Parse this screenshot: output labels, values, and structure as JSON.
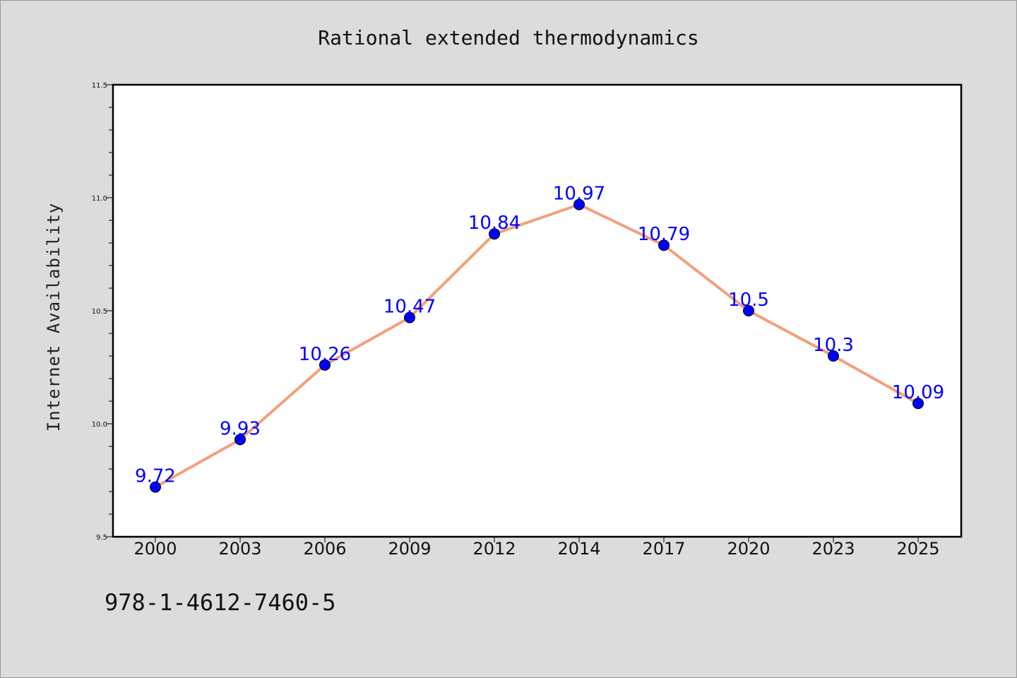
{
  "chart_data": {
    "type": "line",
    "title": "Rational extended thermodynamics",
    "xlabel": "",
    "ylabel": "Internet Availability",
    "categories": [
      "2000",
      "2003",
      "2006",
      "2009",
      "2012",
      "2014",
      "2017",
      "2020",
      "2023",
      "2025"
    ],
    "series": [
      {
        "values": [
          9.72,
          9.93,
          10.26,
          10.47,
          10.84,
          10.97,
          10.79,
          10.5,
          10.3,
          10.09
        ],
        "labels": [
          "9.72",
          "9.93",
          "10.26",
          "10.47",
          "10.84",
          "10.97",
          "10.79",
          "10.5",
          "10.3",
          "10.09"
        ],
        "line_color": "#f4a07a",
        "marker_color": "#0000ff"
      }
    ],
    "ylim": [
      9.5,
      11.5
    ],
    "yticks": [
      "9.5",
      "10.0",
      "10.5",
      "11.0",
      "11.5"
    ],
    "grid": false,
    "legend": "none"
  },
  "footer_code": "978-1-4612-7460-5",
  "colors": {
    "background": "#dcdcdc",
    "plot_background": "#ffffff",
    "axes": "#000000"
  }
}
